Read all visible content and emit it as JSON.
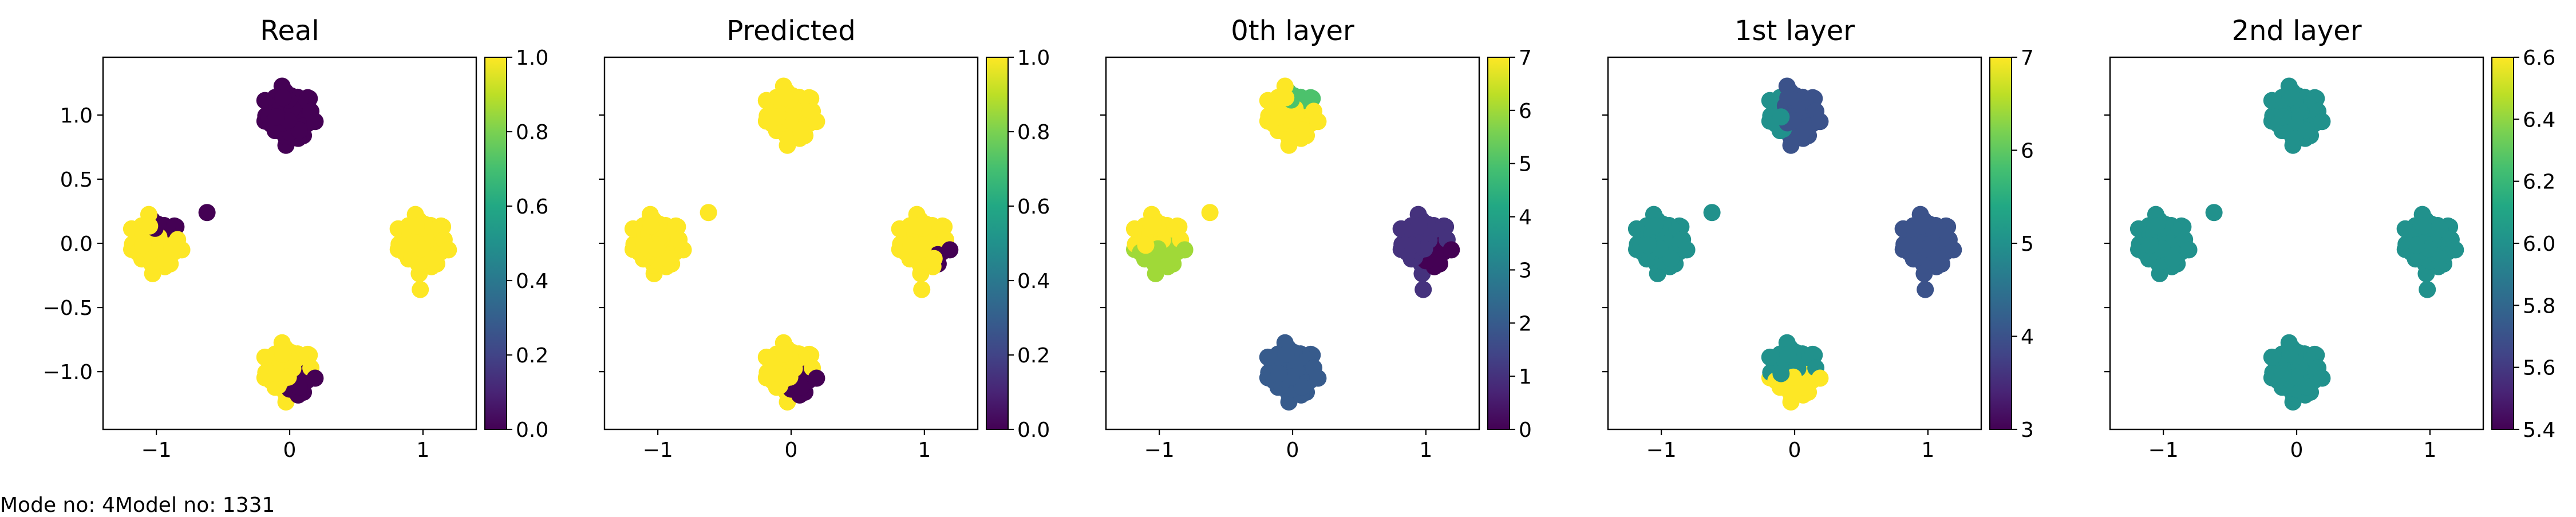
{
  "footer": {
    "mode_text": "Mode no: 4",
    "model_text": "Model no: 1331"
  },
  "chart_data": [
    {
      "type": "scatter",
      "title": "Real",
      "xlim": [
        -1.4,
        1.4
      ],
      "ylim": [
        -1.45,
        1.45
      ],
      "xticks": [
        -1,
        0,
        1
      ],
      "yticks": [
        1.0,
        0.5,
        0.0,
        -0.5,
        -1.0
      ],
      "ytick_labels": [
        "1.0",
        "0.5",
        "0.0",
        "−0.5",
        "−1.0"
      ],
      "show_y_tick_labels": true,
      "colorbar": {
        "min": 0.0,
        "max": 1.0,
        "ticks": [
          0.0,
          0.2,
          0.4,
          0.6,
          0.8,
          1.0
        ],
        "labels": [
          "0.0",
          "0.2",
          "0.4",
          "0.6",
          "0.8",
          "1.0"
        ]
      },
      "clusters": [
        {
          "center": [
            0,
            1.0
          ],
          "value": 0.0
        },
        {
          "center": [
            1.0,
            0.0
          ],
          "value": 1.0
        },
        {
          "center": [
            -1.0,
            0.0
          ],
          "value": 1.0,
          "alt_value": 0.0,
          "split": "upper-right"
        },
        {
          "center": [
            0,
            -1.0
          ],
          "value": 1.0,
          "alt_value": 0.0,
          "split": "lower-right"
        }
      ],
      "outliers": [
        {
          "x": -0.62,
          "y": 0.24,
          "value": 0.0
        },
        {
          "x": 0.98,
          "y": -0.36,
          "value": 1.0
        }
      ]
    },
    {
      "type": "scatter",
      "title": "Predicted",
      "xlim": [
        -1.4,
        1.4
      ],
      "ylim": [
        -1.45,
        1.45
      ],
      "xticks": [
        -1,
        0,
        1
      ],
      "yticks": [
        1.0,
        0.5,
        0.0,
        -0.5,
        -1.0
      ],
      "show_y_tick_labels": false,
      "colorbar": {
        "min": 0.0,
        "max": 1.0,
        "ticks": [
          0.0,
          0.2,
          0.4,
          0.6,
          0.8,
          1.0
        ],
        "labels": [
          "0.0",
          "0.2",
          "0.4",
          "0.6",
          "0.8",
          "1.0"
        ]
      },
      "clusters": [
        {
          "center": [
            0,
            1.0
          ],
          "value": 1.0
        },
        {
          "center": [
            -1.0,
            0.0
          ],
          "value": 1.0
        },
        {
          "center": [
            1.0,
            0.0
          ],
          "value": 1.0,
          "alt_value": 0.0,
          "split": "lower-right-small"
        },
        {
          "center": [
            0,
            -1.0
          ],
          "value": 1.0,
          "alt_value": 0.0,
          "split": "lower-right"
        }
      ],
      "outliers": [
        {
          "x": -0.62,
          "y": 0.24,
          "value": 1.0
        },
        {
          "x": 0.98,
          "y": -0.36,
          "value": 1.0
        }
      ]
    },
    {
      "type": "scatter",
      "title": "0th layer",
      "xlim": [
        -1.4,
        1.4
      ],
      "ylim": [
        -1.45,
        1.45
      ],
      "xticks": [
        -1,
        0,
        1
      ],
      "yticks": [
        1.0,
        0.5,
        0.0,
        -0.5,
        -1.0
      ],
      "show_y_tick_labels": false,
      "colorbar": {
        "min": 0,
        "max": 7,
        "ticks": [
          0,
          1,
          2,
          3,
          4,
          5,
          6,
          7
        ],
        "labels": [
          "0",
          "1",
          "2",
          "3",
          "4",
          "5",
          "6",
          "7"
        ]
      },
      "clusters": [
        {
          "center": [
            0,
            1.0
          ],
          "value": 7,
          "alt_value": 5,
          "split": "upper-right"
        },
        {
          "center": [
            -1.0,
            0.0
          ],
          "value": 7,
          "alt_value": 6,
          "split": "lower"
        },
        {
          "center": [
            1.0,
            0.0
          ],
          "value": 1,
          "alt_value": 0,
          "split": "lower-right"
        },
        {
          "center": [
            0,
            -1.0
          ],
          "value": 2
        }
      ],
      "outliers": [
        {
          "x": -0.62,
          "y": 0.24,
          "value": 7
        },
        {
          "x": 0.98,
          "y": -0.36,
          "value": 1
        }
      ]
    },
    {
      "type": "scatter",
      "title": "1st layer",
      "xlim": [
        -1.4,
        1.4
      ],
      "ylim": [
        -1.45,
        1.45
      ],
      "xticks": [
        -1,
        0,
        1
      ],
      "yticks": [
        1.0,
        0.5,
        0.0,
        -0.5,
        -1.0
      ],
      "show_y_tick_labels": false,
      "colorbar": {
        "min": 3,
        "max": 7,
        "ticks": [
          3,
          4,
          5,
          6,
          7
        ],
        "labels": [
          "3",
          "4",
          "5",
          "6",
          "7"
        ]
      },
      "clusters": [
        {
          "center": [
            0,
            1.0
          ],
          "value": 4,
          "alt_value": 5,
          "split": "left"
        },
        {
          "center": [
            -1.0,
            0.0
          ],
          "value": 5
        },
        {
          "center": [
            1.0,
            0.0
          ],
          "value": 4
        },
        {
          "center": [
            0,
            -1.0
          ],
          "value": 5,
          "alt_value": 7,
          "split": "lower"
        }
      ],
      "outliers": [
        {
          "x": -0.62,
          "y": 0.24,
          "value": 5
        },
        {
          "x": 0.98,
          "y": -0.36,
          "value": 4
        }
      ]
    },
    {
      "type": "scatter",
      "title": "2nd layer",
      "xlim": [
        -1.4,
        1.4
      ],
      "ylim": [
        -1.45,
        1.45
      ],
      "xticks": [
        -1,
        0,
        1
      ],
      "yticks": [
        1.0,
        0.5,
        0.0,
        -0.5,
        -1.0
      ],
      "show_y_tick_labels": false,
      "colorbar": {
        "min": 5.4,
        "max": 6.6,
        "ticks": [
          5.4,
          5.6,
          5.8,
          6.0,
          6.2,
          6.4,
          6.6
        ],
        "labels": [
          "5.4",
          "5.6",
          "5.8",
          "6.0",
          "6.2",
          "6.4",
          "6.6"
        ]
      },
      "clusters": [
        {
          "center": [
            0,
            1.0
          ],
          "value": 6.0
        },
        {
          "center": [
            -1.0,
            0.0
          ],
          "value": 6.0
        },
        {
          "center": [
            1.0,
            0.0
          ],
          "value": 6.0
        },
        {
          "center": [
            0,
            -1.0
          ],
          "value": 6.0
        }
      ],
      "outliers": [
        {
          "x": -0.62,
          "y": 0.24,
          "value": 6.0
        },
        {
          "x": 0.98,
          "y": -0.36,
          "value": 6.0
        }
      ]
    }
  ]
}
